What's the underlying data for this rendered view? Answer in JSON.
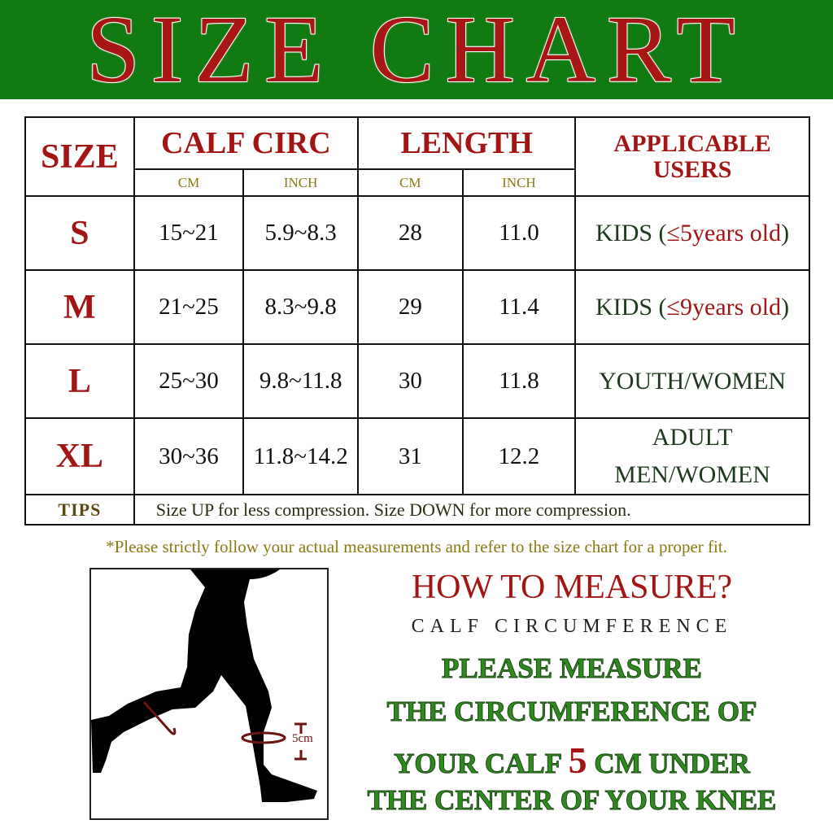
{
  "title": "SIZE CHART",
  "table": {
    "size_header": "SIZE",
    "calf_header": "CALF CIRC",
    "length_header": "LENGTH",
    "users_header": "APPLICABLE USERS",
    "cm": "CM",
    "inch": "INCH",
    "rows": [
      {
        "size": "S",
        "calf_cm": "15~21",
        "calf_in": "5.9~8.3",
        "len_cm": "28",
        "len_in": "11.0",
        "users_a": "KIDS (",
        "users_b": "≤5years old",
        ")": ")"
      },
      {
        "size": "M",
        "calf_cm": "21~25",
        "calf_in": "8.3~9.8",
        "len_cm": "29",
        "len_in": "11.4",
        "users_a": "KIDS (",
        "users_b": "≤9years old"
      },
      {
        "size": "L",
        "calf_cm": "25~30",
        "calf_in": "9.8~11.8",
        "len_cm": "30",
        "len_in": "11.8",
        "users_a": "YOUTH/WOMEN"
      },
      {
        "size": "XL",
        "calf_cm": "30~36",
        "calf_in": "11.8~14.2",
        "len_cm": "31",
        "len_in": "12.2",
        "users_a": "ADULT",
        "users_c": "MEN/WOMEN"
      }
    ],
    "paren_close": ")",
    "tips_label": "TIPS",
    "tips_text": "Size UP for less compression. Size DOWN for more compression."
  },
  "note": "*Please strictly follow your actual measurements and refer to the size chart for a proper fit.",
  "measure": {
    "heading": "HOW TO MEASURE?",
    "subheading": "CALF CIRCUMFERENCE",
    "line1": "PLEASE MEASURE",
    "line2": "THE CIRCUMFERENCE OF",
    "line3a": "YOUR CALF ",
    "line3b": "5",
    "line3c": " CM UNDER",
    "line4": "THE CENTER OF YOUR KNEE",
    "diagram_label": "5cm"
  },
  "colors": {
    "banner": "#127a12",
    "accent_red": "#a31515",
    "green_text": "#2e8a1e",
    "olive": "#8a7a10"
  }
}
